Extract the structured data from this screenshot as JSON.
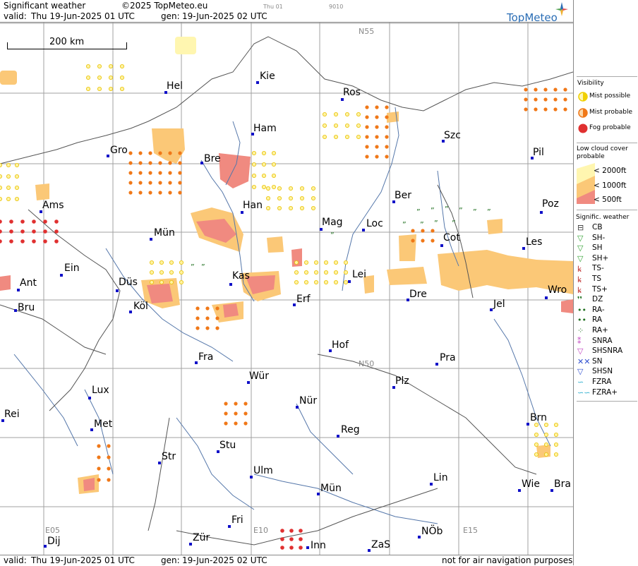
{
  "header": {
    "title": "Significant weather",
    "copyright": "©2025 TopMeteo.eu",
    "valid_label": "valid:",
    "valid_value": "Thu  19-Jun-2025  01 UTC",
    "gen_label": "gen:",
    "gen_value": "19-Jun-2025 02 UTC",
    "small_day": "Thu 01",
    "small_code": "9010",
    "brand": "TopMeteo"
  },
  "footer": {
    "valid_label": "valid:",
    "valid_value": "Thu  19-Jun-2025  01 UTC",
    "gen_label": "gen:",
    "gen_value": "19-Jun-2025 02 UTC",
    "disclaimer": "not for air navigation purposes"
  },
  "scale": {
    "label": "200 km"
  },
  "grid_labels": [
    "N55",
    "N50",
    "E05",
    "E10",
    "E15"
  ],
  "cities": [
    {
      "name": "Kie"
    },
    {
      "name": "Hel"
    },
    {
      "name": "Ros"
    },
    {
      "name": "Ham"
    },
    {
      "name": "Szc"
    },
    {
      "name": "Gro"
    },
    {
      "name": "Bre"
    },
    {
      "name": "Pil"
    },
    {
      "name": "Ber"
    },
    {
      "name": "Ams"
    },
    {
      "name": "Han"
    },
    {
      "name": "Poz"
    },
    {
      "name": "Mag"
    },
    {
      "name": "Loc"
    },
    {
      "name": "Mün"
    },
    {
      "name": "Cot"
    },
    {
      "name": "Les"
    },
    {
      "name": "Ein"
    },
    {
      "name": "Kas"
    },
    {
      "name": "Ant"
    },
    {
      "name": "Düs"
    },
    {
      "name": "Lei"
    },
    {
      "name": "Wro"
    },
    {
      "name": "Bru"
    },
    {
      "name": "Köl"
    },
    {
      "name": "Erf"
    },
    {
      "name": "Dre"
    },
    {
      "name": "Jel"
    },
    {
      "name": "Hof"
    },
    {
      "name": "Fra"
    },
    {
      "name": "Pra"
    },
    {
      "name": "Wür"
    },
    {
      "name": "Lux"
    },
    {
      "name": "Plz"
    },
    {
      "name": "Nür"
    },
    {
      "name": "Rei"
    },
    {
      "name": "Met"
    },
    {
      "name": "Reg"
    },
    {
      "name": "Brn"
    },
    {
      "name": "Stu"
    },
    {
      "name": "Str"
    },
    {
      "name": "Lin"
    },
    {
      "name": "Ulm"
    },
    {
      "name": "Mün"
    },
    {
      "name": "Wie"
    },
    {
      "name": "Bra"
    },
    {
      "name": "Fri"
    },
    {
      "name": "NÖb"
    },
    {
      "name": "Dij"
    },
    {
      "name": "Zür"
    },
    {
      "name": "Inn"
    },
    {
      "name": "ZaS"
    }
  ],
  "legend": {
    "visibility_title": "Visibility",
    "visibility": [
      {
        "label": "Mist possible",
        "color": "#f0d000"
      },
      {
        "label": "Mist probable",
        "color": "#f07818"
      },
      {
        "label": "Fog probable",
        "color": "#e03030"
      }
    ],
    "cloud_title_1": "Low cloud cover",
    "cloud_title_2": "probable",
    "cloud": [
      {
        "label": "< 2000ft",
        "color": "#fff6b0"
      },
      {
        "label": "< 1000ft",
        "color": "#fbc877"
      },
      {
        "label": "<   500ft",
        "color": "#f08a80"
      }
    ],
    "sigwx_title": "Signific. weather",
    "sigwx": [
      {
        "label": "CB",
        "icon": "cb-icon"
      },
      {
        "label": "SH-",
        "icon": "shower-light-icon"
      },
      {
        "label": "SH",
        "icon": "shower-icon"
      },
      {
        "label": "SH+",
        "icon": "shower-heavy-icon"
      },
      {
        "label": "TS-",
        "icon": "thunderstorm-light-icon"
      },
      {
        "label": "TS",
        "icon": "thunderstorm-icon"
      },
      {
        "label": "TS+",
        "icon": "thunderstorm-heavy-icon"
      },
      {
        "label": "DZ",
        "icon": "drizzle-icon"
      },
      {
        "label": "RA-",
        "icon": "rain-light-icon"
      },
      {
        "label": "RA",
        "icon": "rain-icon"
      },
      {
        "label": "RA+",
        "icon": "rain-heavy-icon"
      },
      {
        "label": "SNRA",
        "icon": "snow-rain-icon"
      },
      {
        "label": "SHSNRA",
        "icon": "snow-rain-shower-icon"
      },
      {
        "label": "SN",
        "icon": "snow-icon"
      },
      {
        "label": "SHSN",
        "icon": "snow-shower-icon"
      },
      {
        "label": "FZRA",
        "icon": "freezing-rain-icon"
      },
      {
        "label": "FZRA+",
        "icon": "freezing-rain-heavy-icon"
      }
    ]
  },
  "colors": {
    "mist_possible": "#f0d000",
    "mist_probable": "#f07818",
    "fog_probable": "#e03030",
    "cloud_2000": "#fff6b0",
    "cloud_1000": "#fbc877",
    "cloud_500": "#f08a80",
    "city": "#1010c8",
    "river": "#5577aa",
    "border": "#555555",
    "grid": "#999999",
    "drizzle": "#207020"
  }
}
